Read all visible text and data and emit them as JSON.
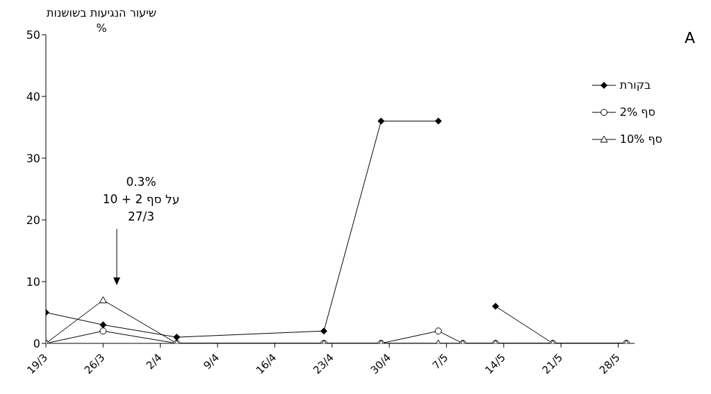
{
  "chart_data": {
    "type": "line",
    "ylabel": "שיעור הנגיעות בשושנות\n%",
    "x": [
      "--03-19",
      "--03-26",
      "--04-04",
      "--04-22",
      "--04-29",
      "--05-06",
      "--05-09",
      "--05-13",
      "--05-20",
      "--05-29"
    ],
    "series": [
      {
        "name": "בקורת",
        "color": "#000000",
        "marker": "diamond",
        "values": [
          5,
          3,
          1,
          2,
          36,
          36,
          null,
          6,
          0,
          0
        ]
      },
      {
        "name": "סף 2%",
        "color": "#000000",
        "marker": "circle",
        "values": [
          0,
          2,
          0,
          0,
          0,
          2,
          0,
          0,
          0,
          0
        ]
      },
      {
        "name": "סף 10%",
        "color": "#000000",
        "marker": "triangle",
        "values": [
          0,
          7,
          0,
          0,
          0,
          0,
          0,
          0,
          0,
          0
        ]
      }
    ],
    "xlim": [
      "--03-19",
      "--05-30"
    ],
    "xticks": [
      {
        "value": "--03-19",
        "label": "19/3"
      },
      {
        "value": "--03-26",
        "label": "26/3"
      },
      {
        "value": "--04-02",
        "label": "2/4"
      },
      {
        "value": "--04-09",
        "label": "9/4"
      },
      {
        "value": "--04-16",
        "label": "16/4"
      },
      {
        "value": "--04-23",
        "label": "23/4"
      },
      {
        "value": "--04-30",
        "label": "30/4"
      },
      {
        "value": "--05-07",
        "label": "7/5"
      },
      {
        "value": "--05-14",
        "label": "14/5"
      },
      {
        "value": "--05-21",
        "label": "21/5"
      },
      {
        "value": "--05-28",
        "label": "28/5"
      }
    ],
    "ylim": [
      0,
      50
    ],
    "yticks": [
      0,
      10,
      20,
      30,
      40,
      50
    ],
    "annotations": [
      "0.3%\nעל סף 2 + 10\n27/3",
      "A"
    ],
    "grid": false,
    "legend": "right",
    "line_style": "solid"
  }
}
